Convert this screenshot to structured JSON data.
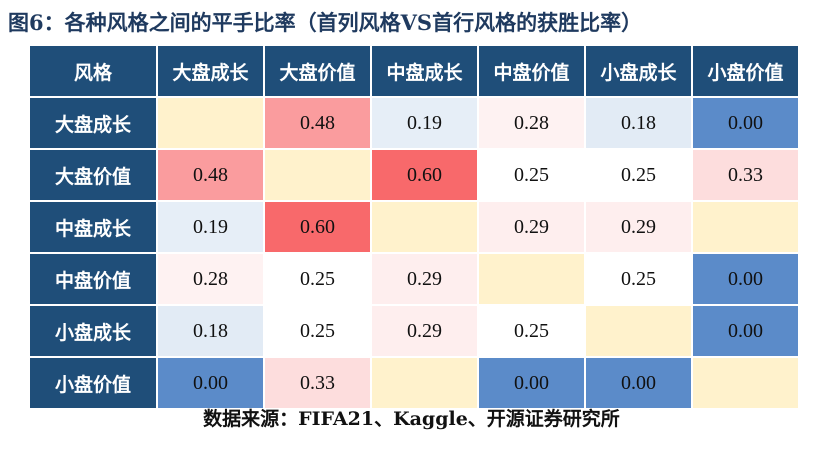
{
  "title": "图6：各种风格之间的平手比率（首列风格VS首行风格的获胜比率）",
  "source": "数据来源：FIFA21、Kaggle、开源证券研究所",
  "chart_data": {
    "type": "heatmap",
    "corner_label": "风格",
    "columns": [
      "大盘成长",
      "大盘价值",
      "中盘成长",
      "中盘价值",
      "小盘成长",
      "小盘价值"
    ],
    "rows": [
      "大盘成长",
      "大盘价值",
      "中盘成长",
      "中盘价值",
      "小盘成长",
      "小盘价值"
    ],
    "values": [
      [
        null,
        0.48,
        0.19,
        0.28,
        0.18,
        0.0
      ],
      [
        0.48,
        null,
        0.6,
        0.25,
        0.25,
        0.33
      ],
      [
        0.19,
        0.6,
        null,
        0.29,
        0.29,
        null
      ],
      [
        0.28,
        0.25,
        0.29,
        null,
        0.25,
        0.0
      ],
      [
        0.18,
        0.25,
        0.29,
        0.25,
        null,
        0.0
      ],
      [
        0.0,
        0.33,
        null,
        0.0,
        0.0,
        null
      ]
    ],
    "colors": {
      "header": "#1f4e79",
      "empty": "#fff2cc",
      "zero": "#5b8bc9",
      "low": "#d6e2f1",
      "neutral": "#ffffff",
      "high": "#f8696b"
    }
  }
}
